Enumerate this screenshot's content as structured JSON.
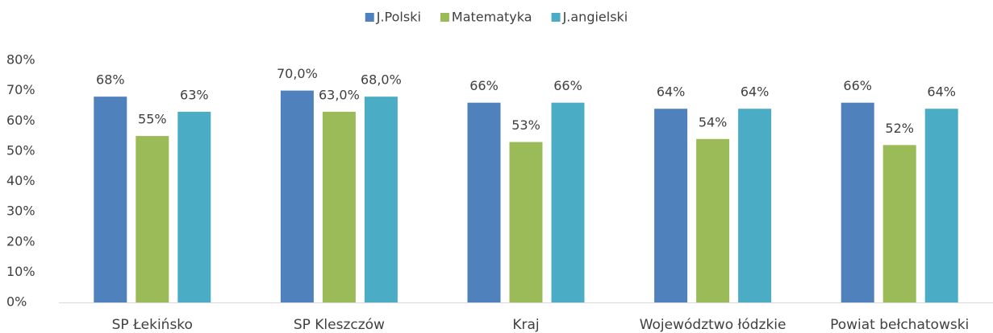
{
  "chart_data": {
    "type": "bar",
    "categories": [
      "SP Łekińsko",
      "SP Kleszczów",
      "Kraj",
      "Województwo łódzkie",
      "Powiat bełchatowski"
    ],
    "series": [
      {
        "name": "J.Polski",
        "color": "#4f81bd",
        "values": [
          68,
          70,
          66,
          64,
          66
        ],
        "value_labels": [
          "68%",
          "70,0%",
          "66%",
          "64%",
          "66%"
        ]
      },
      {
        "name": "Matematyka",
        "color": "#9bbb59",
        "values": [
          55,
          63,
          53,
          54,
          52
        ],
        "value_labels": [
          "55%",
          "63,0%",
          "53%",
          "54%",
          "52%"
        ]
      },
      {
        "name": "J.angielski",
        "color": "#4bacc6",
        "values": [
          63,
          68,
          66,
          64,
          64
        ],
        "value_labels": [
          "63%",
          "68,0%",
          "66%",
          "64%",
          "64%"
        ]
      }
    ],
    "ylim": [
      0,
      80
    ],
    "yticks": [
      {
        "value": 0,
        "label": "0%"
      },
      {
        "value": 10,
        "label": "10%"
      },
      {
        "value": 20,
        "label": "20%"
      },
      {
        "value": 30,
        "label": "30%"
      },
      {
        "value": 40,
        "label": "40%"
      },
      {
        "value": 50,
        "label": "50%"
      },
      {
        "value": 60,
        "label": "60%"
      },
      {
        "value": 70,
        "label": "70%"
      },
      {
        "value": 80,
        "label": "80%"
      }
    ],
    "grid": false,
    "legend": "top"
  }
}
